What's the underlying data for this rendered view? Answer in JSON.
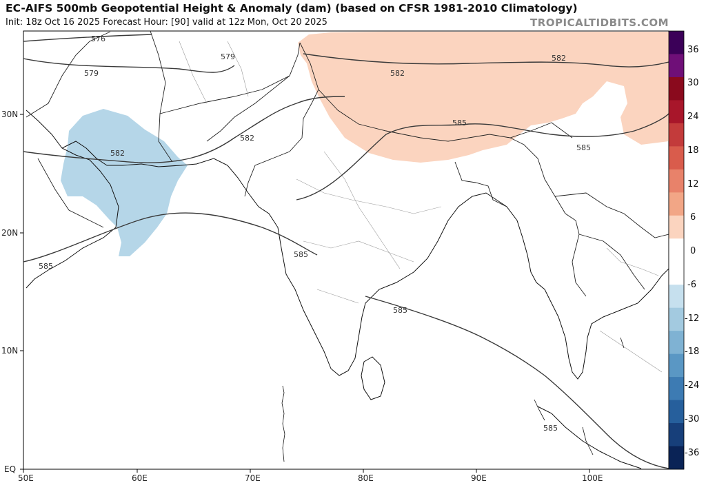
{
  "header": {
    "title": "EC-AIFS 500mb Geopotential Height & Anomaly (dam) (based on CFSR 1981-2010 Climatology)",
    "subtitle": "Init: 18z Oct 16 2025   Forecast Hour: [90]   valid at 12z Mon, Oct 20 2025",
    "brand": "TROPICALTIDBITS.COM"
  },
  "map": {
    "lon_ticks": [
      "50E",
      "60E",
      "70E",
      "80E",
      "90E",
      "100E"
    ],
    "lat_ticks": [
      "30N",
      "20N",
      "10N",
      "EQ"
    ],
    "lon_range": [
      50,
      107
    ],
    "lat_range": [
      0,
      37.5
    ],
    "contour_labels": [
      "576",
      "579",
      "579",
      "582",
      "582",
      "582",
      "585",
      "585",
      "585",
      "585",
      "582",
      "585",
      "585"
    ],
    "anomalies": {
      "positive_region": "Tibetan Plateau / Himalaya",
      "positive_color": "#fbd4bf",
      "negative_region": "Arabian Gulf / Oman / southern Iran",
      "negative_color": "#b5d6e8"
    }
  },
  "colorbar": {
    "labels": [
      "36",
      "30",
      "24",
      "18",
      "12",
      "6",
      "0",
      "-6",
      "-12",
      "-18",
      "-24",
      "-30",
      "-36"
    ],
    "colors": [
      "#3b0058",
      "#6f0f78",
      "#8a0a1d",
      "#a8162a",
      "#c33b3b",
      "#d95c4c",
      "#e8826a",
      "#f2a686",
      "#fbd4bf",
      "#ffffff",
      "#ffffff",
      "#c6e0ee",
      "#a3cae0",
      "#7fb2d3",
      "#5a97c4",
      "#3d7bb3",
      "#265f9c",
      "#173f7a",
      "#0a2356"
    ]
  }
}
